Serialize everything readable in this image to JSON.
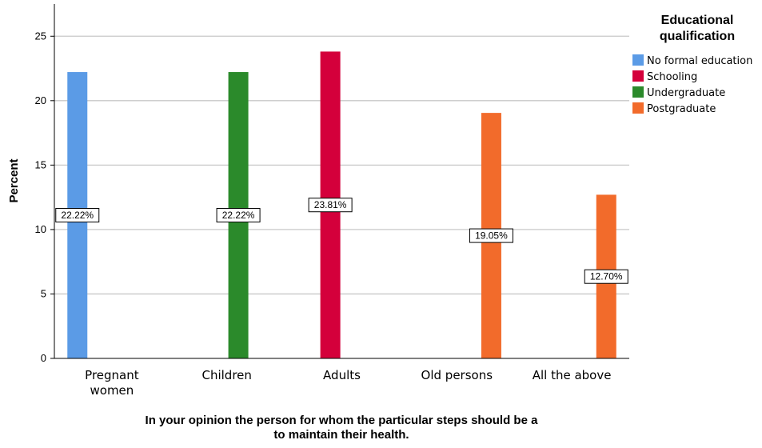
{
  "chart_data": {
    "type": "bar",
    "categories": [
      "Pregnant women",
      "Children",
      "Adults",
      "Old persons",
      "All the above"
    ],
    "category_label_lines": [
      [
        "Pregnant",
        "women"
      ],
      [
        "Children"
      ],
      [
        "Adults"
      ],
      [
        "Old persons"
      ],
      [
        "All the above"
      ]
    ],
    "series": [
      {
        "name": "No formal education",
        "color": "#5b9be6",
        "values": [
          22.22,
          null,
          null,
          null,
          null
        ]
      },
      {
        "name": "Schooling",
        "color": "#d4003b",
        "values": [
          null,
          null,
          23.81,
          null,
          null
        ]
      },
      {
        "name": "Undergraduate",
        "color": "#2b8a2b",
        "values": [
          null,
          22.22,
          null,
          null,
          null
        ]
      },
      {
        "name": "Postgraduate",
        "color": "#f26b2b",
        "values": [
          null,
          null,
          null,
          19.05,
          12.7
        ]
      }
    ],
    "bar_series_order": [
      "No formal education",
      "Undergraduate",
      "Schooling",
      "Postgraduate",
      "Postgraduate"
    ],
    "data_labels": [
      "22.22%",
      "22.22%",
      "23.81%",
      "19.05%",
      "12.70%"
    ],
    "ylabel": "Percent",
    "xlabel_lines": [
      "In your opinion the person for whom the particular steps should be a",
      "to maintain their health."
    ],
    "ylim": [
      0,
      27.5
    ],
    "yticks": [
      0,
      5,
      10,
      15,
      20,
      25
    ],
    "grid": true,
    "legend": {
      "title_lines": [
        "Educational",
        "qualification"
      ],
      "placement": "right",
      "items": [
        "No formal education",
        "Schooling",
        "Undergraduate",
        "Postgraduate"
      ]
    }
  }
}
